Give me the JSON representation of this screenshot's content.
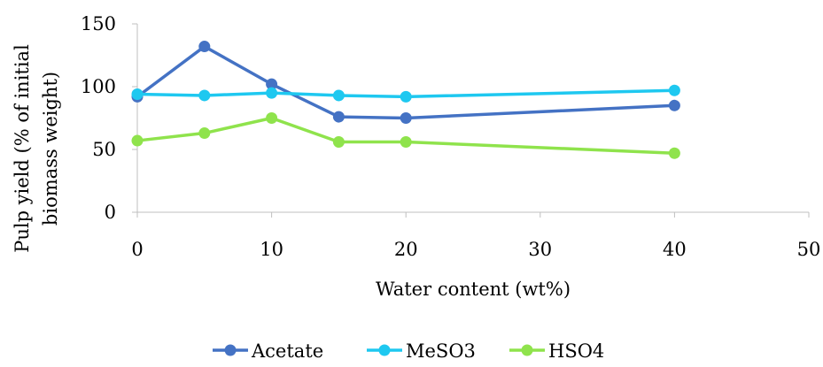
{
  "chart_data": {
    "type": "line",
    "title": "",
    "xlabel": "Water content (wt%)",
    "ylabel_lines": [
      "Pulp yield (% of initial",
      "biomass weight)"
    ],
    "xlim": [
      0,
      50
    ],
    "ylim": [
      0,
      150
    ],
    "x_ticks": [
      0,
      10,
      20,
      30,
      40,
      50
    ],
    "y_ticks": [
      0,
      50,
      100,
      150
    ],
    "grid": false,
    "legend_position": "bottom",
    "x": [
      0,
      5,
      10,
      15,
      20,
      40
    ],
    "series": [
      {
        "name": "Acetate",
        "color": "#4472C4",
        "values": [
          92,
          132,
          102,
          76,
          75,
          85
        ]
      },
      {
        "name": "MeSO3",
        "color": "#1EC8F0",
        "values": [
          94,
          93,
          95,
          93,
          92,
          97
        ]
      },
      {
        "name": "HSO4",
        "color": "#8FE34C",
        "values": [
          57,
          63,
          75,
          56,
          56,
          47
        ]
      }
    ]
  }
}
